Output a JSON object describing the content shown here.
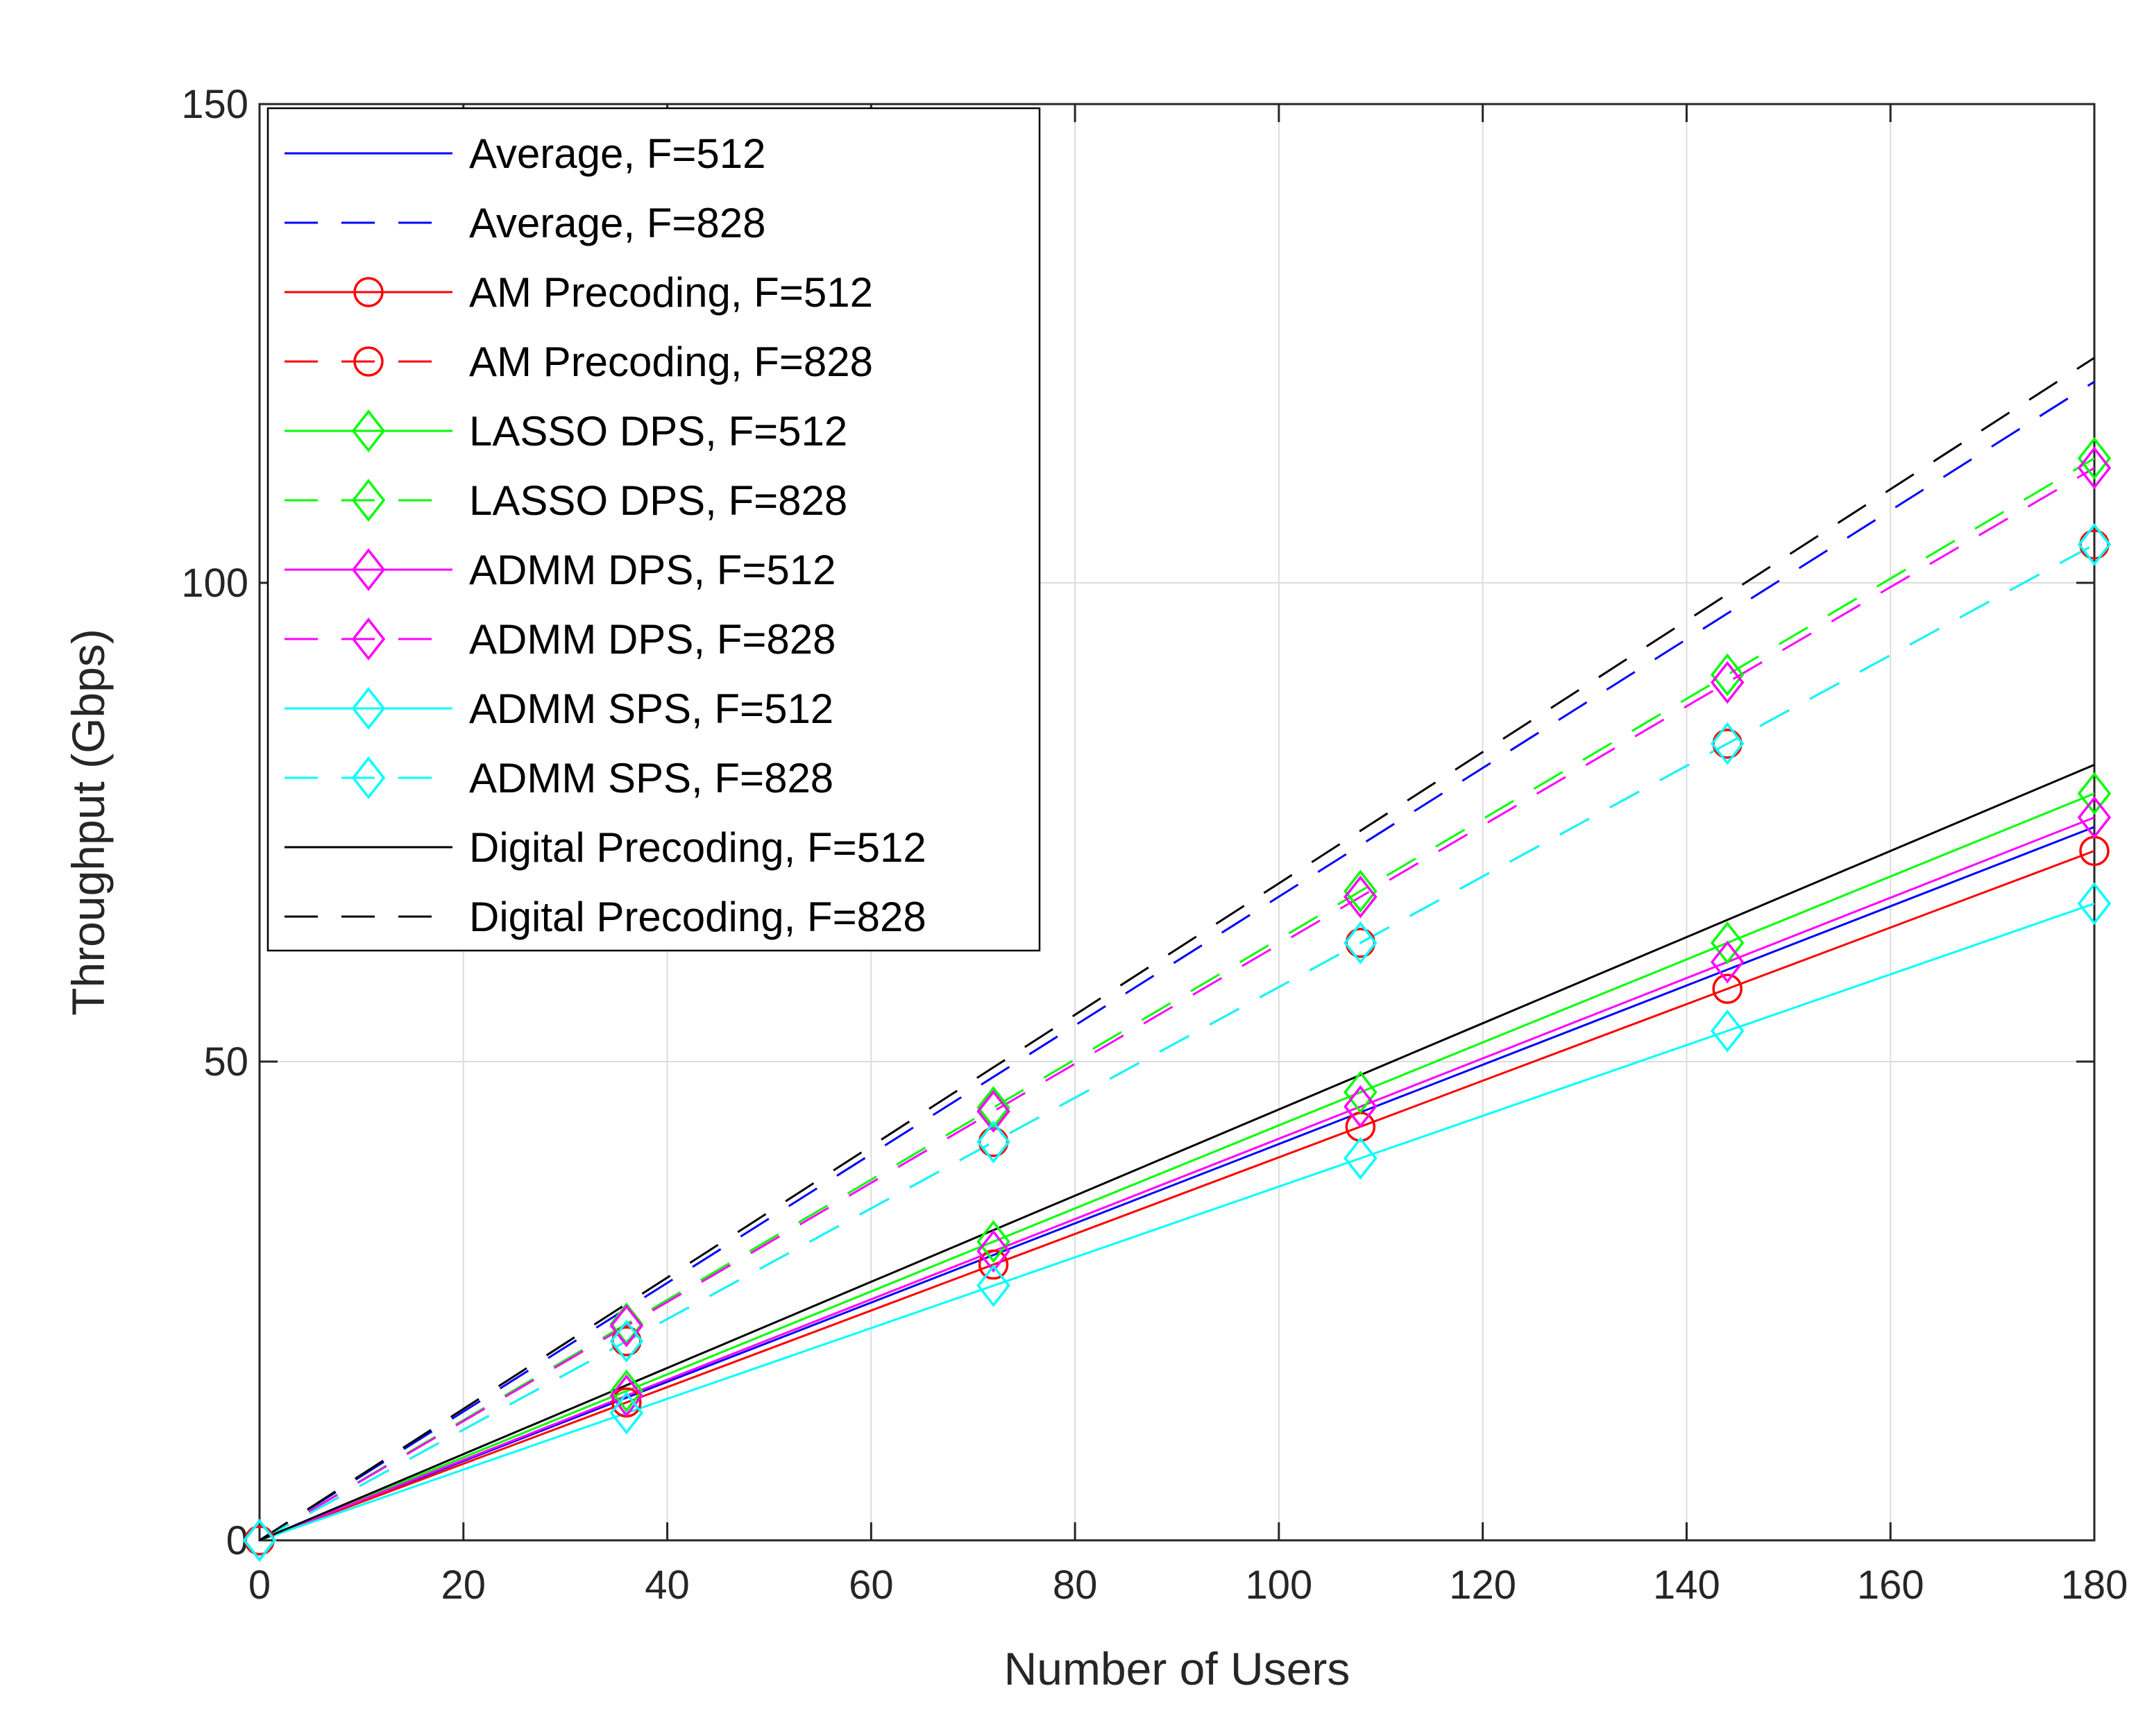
{
  "chart_data": {
    "type": "line",
    "title": "",
    "xlabel": "Number of Users",
    "ylabel": "Throughput (Gbps)",
    "xlim": [
      0,
      180
    ],
    "ylim": [
      0,
      150
    ],
    "xticks": [
      0,
      20,
      40,
      60,
      80,
      100,
      120,
      140,
      160,
      180
    ],
    "yticks": [
      0,
      50,
      100,
      150
    ],
    "grid": true,
    "legend_position": "top-left",
    "x": [
      0,
      36,
      72,
      108,
      144,
      180
    ],
    "series": [
      {
        "name": "Average, F=512",
        "color": "#0000ff",
        "dash": "solid",
        "marker": "none",
        "values": [
          0,
          14.9,
          29.8,
          44.7,
          59.6,
          74.5
        ]
      },
      {
        "name": "Average, F=828",
        "color": "#0000ff",
        "dash": "dashed",
        "marker": "none",
        "values": [
          0,
          24.2,
          48.4,
          72.6,
          96.8,
          121.0
        ]
      },
      {
        "name": "AM Precoding, F=512",
        "color": "#ff0000",
        "dash": "solid",
        "marker": "circle",
        "values": [
          0,
          14.4,
          28.8,
          43.2,
          57.6,
          72.0
        ]
      },
      {
        "name": "AM Precoding, F=828",
        "color": "#ff0000",
        "dash": "dashed",
        "marker": "circle",
        "values": [
          0,
          20.8,
          41.6,
          62.4,
          83.2,
          104.0
        ]
      },
      {
        "name": "LASSO DPS, F=512",
        "color": "#00ff00",
        "dash": "solid",
        "marker": "diamond",
        "values": [
          0,
          15.6,
          31.2,
          46.8,
          62.4,
          78.0
        ]
      },
      {
        "name": "LASSO DPS, F=828",
        "color": "#00ff00",
        "dash": "dashed",
        "marker": "diamond",
        "values": [
          0,
          22.6,
          45.2,
          67.8,
          90.4,
          113.0
        ]
      },
      {
        "name": "ADMM DPS, F=512",
        "color": "#ff00ff",
        "dash": "solid",
        "marker": "diamond",
        "values": [
          0,
          15.1,
          30.2,
          45.3,
          60.4,
          75.5
        ]
      },
      {
        "name": "ADMM DPS, F=828",
        "color": "#ff00ff",
        "dash": "dashed",
        "marker": "diamond",
        "values": [
          0,
          22.4,
          44.8,
          67.2,
          89.6,
          112.0
        ]
      },
      {
        "name": "ADMM SPS, F=512",
        "color": "#00ffff",
        "dash": "solid",
        "marker": "diamond",
        "values": [
          0,
          13.3,
          26.6,
          39.9,
          53.2,
          66.5
        ]
      },
      {
        "name": "ADMM SPS, F=828",
        "color": "#00ffff",
        "dash": "dashed",
        "marker": "diamond",
        "values": [
          0,
          20.8,
          41.6,
          62.4,
          83.2,
          104.0
        ]
      },
      {
        "name": "Digital Precoding, F=512",
        "color": "#000000",
        "dash": "solid",
        "marker": "none",
        "values": [
          0,
          16.2,
          32.4,
          48.6,
          64.8,
          81.0
        ]
      },
      {
        "name": "Digital Precoding, F=828",
        "color": "#000000",
        "dash": "dashed",
        "marker": "none",
        "values": [
          0,
          24.7,
          49.4,
          74.1,
          98.8,
          123.5
        ]
      }
    ]
  }
}
